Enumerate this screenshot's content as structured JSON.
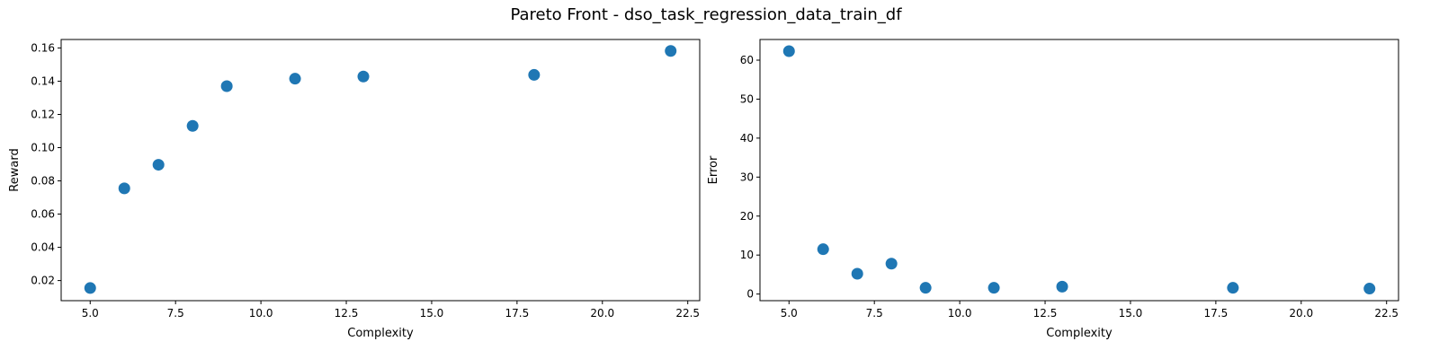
{
  "figure": {
    "title": "Pareto Front - dso_task_regression_data_train_df"
  },
  "chart_data": [
    {
      "type": "scatter",
      "xlabel": "Complexity",
      "ylabel": "Reward",
      "xlim": [
        4.15,
        22.85
      ],
      "ylim": [
        0.0079,
        0.1651
      ],
      "xticks": [
        5.0,
        7.5,
        10.0,
        12.5,
        15.0,
        17.5,
        20.0,
        22.5
      ],
      "yticks": [
        0.02,
        0.04,
        0.06,
        0.08,
        0.1,
        0.12,
        0.14,
        0.16
      ],
      "xtick_labels": [
        "5.0",
        "7.5",
        "10.0",
        "12.5",
        "15.0",
        "17.5",
        "20.0",
        "22.5"
      ],
      "ytick_labels": [
        "0.02",
        "0.04",
        "0.06",
        "0.08",
        "0.10",
        "0.12",
        "0.14",
        "0.16"
      ],
      "marker_color": "#1f77b4",
      "series": [
        {
          "x": [
            5,
            6,
            7,
            8,
            9,
            11,
            13,
            18,
            22
          ],
          "y": [
            0.0155,
            0.0755,
            0.0897,
            0.1131,
            0.137,
            0.1415,
            0.1428,
            0.1438,
            0.1582
          ]
        }
      ]
    },
    {
      "type": "scatter",
      "xlabel": "Complexity",
      "ylabel": "Error",
      "xlim": [
        4.15,
        22.85
      ],
      "ylim": [
        -1.7,
        65.3
      ],
      "xticks": [
        5.0,
        7.5,
        10.0,
        12.5,
        15.0,
        17.5,
        20.0,
        22.5
      ],
      "yticks": [
        0,
        10,
        20,
        30,
        40,
        50,
        60
      ],
      "xtick_labels": [
        "5.0",
        "7.5",
        "10.0",
        "12.5",
        "15.0",
        "17.5",
        "20.0",
        "22.5"
      ],
      "ytick_labels": [
        "0",
        "10",
        "20",
        "30",
        "40",
        "50",
        "60"
      ],
      "marker_color": "#1f77b4",
      "series": [
        {
          "x": [
            5,
            6,
            7,
            8,
            9,
            11,
            13,
            18,
            22
          ],
          "y": [
            62.3,
            11.5,
            5.2,
            7.8,
            1.6,
            1.6,
            1.9,
            1.6,
            1.4
          ]
        }
      ]
    }
  ]
}
